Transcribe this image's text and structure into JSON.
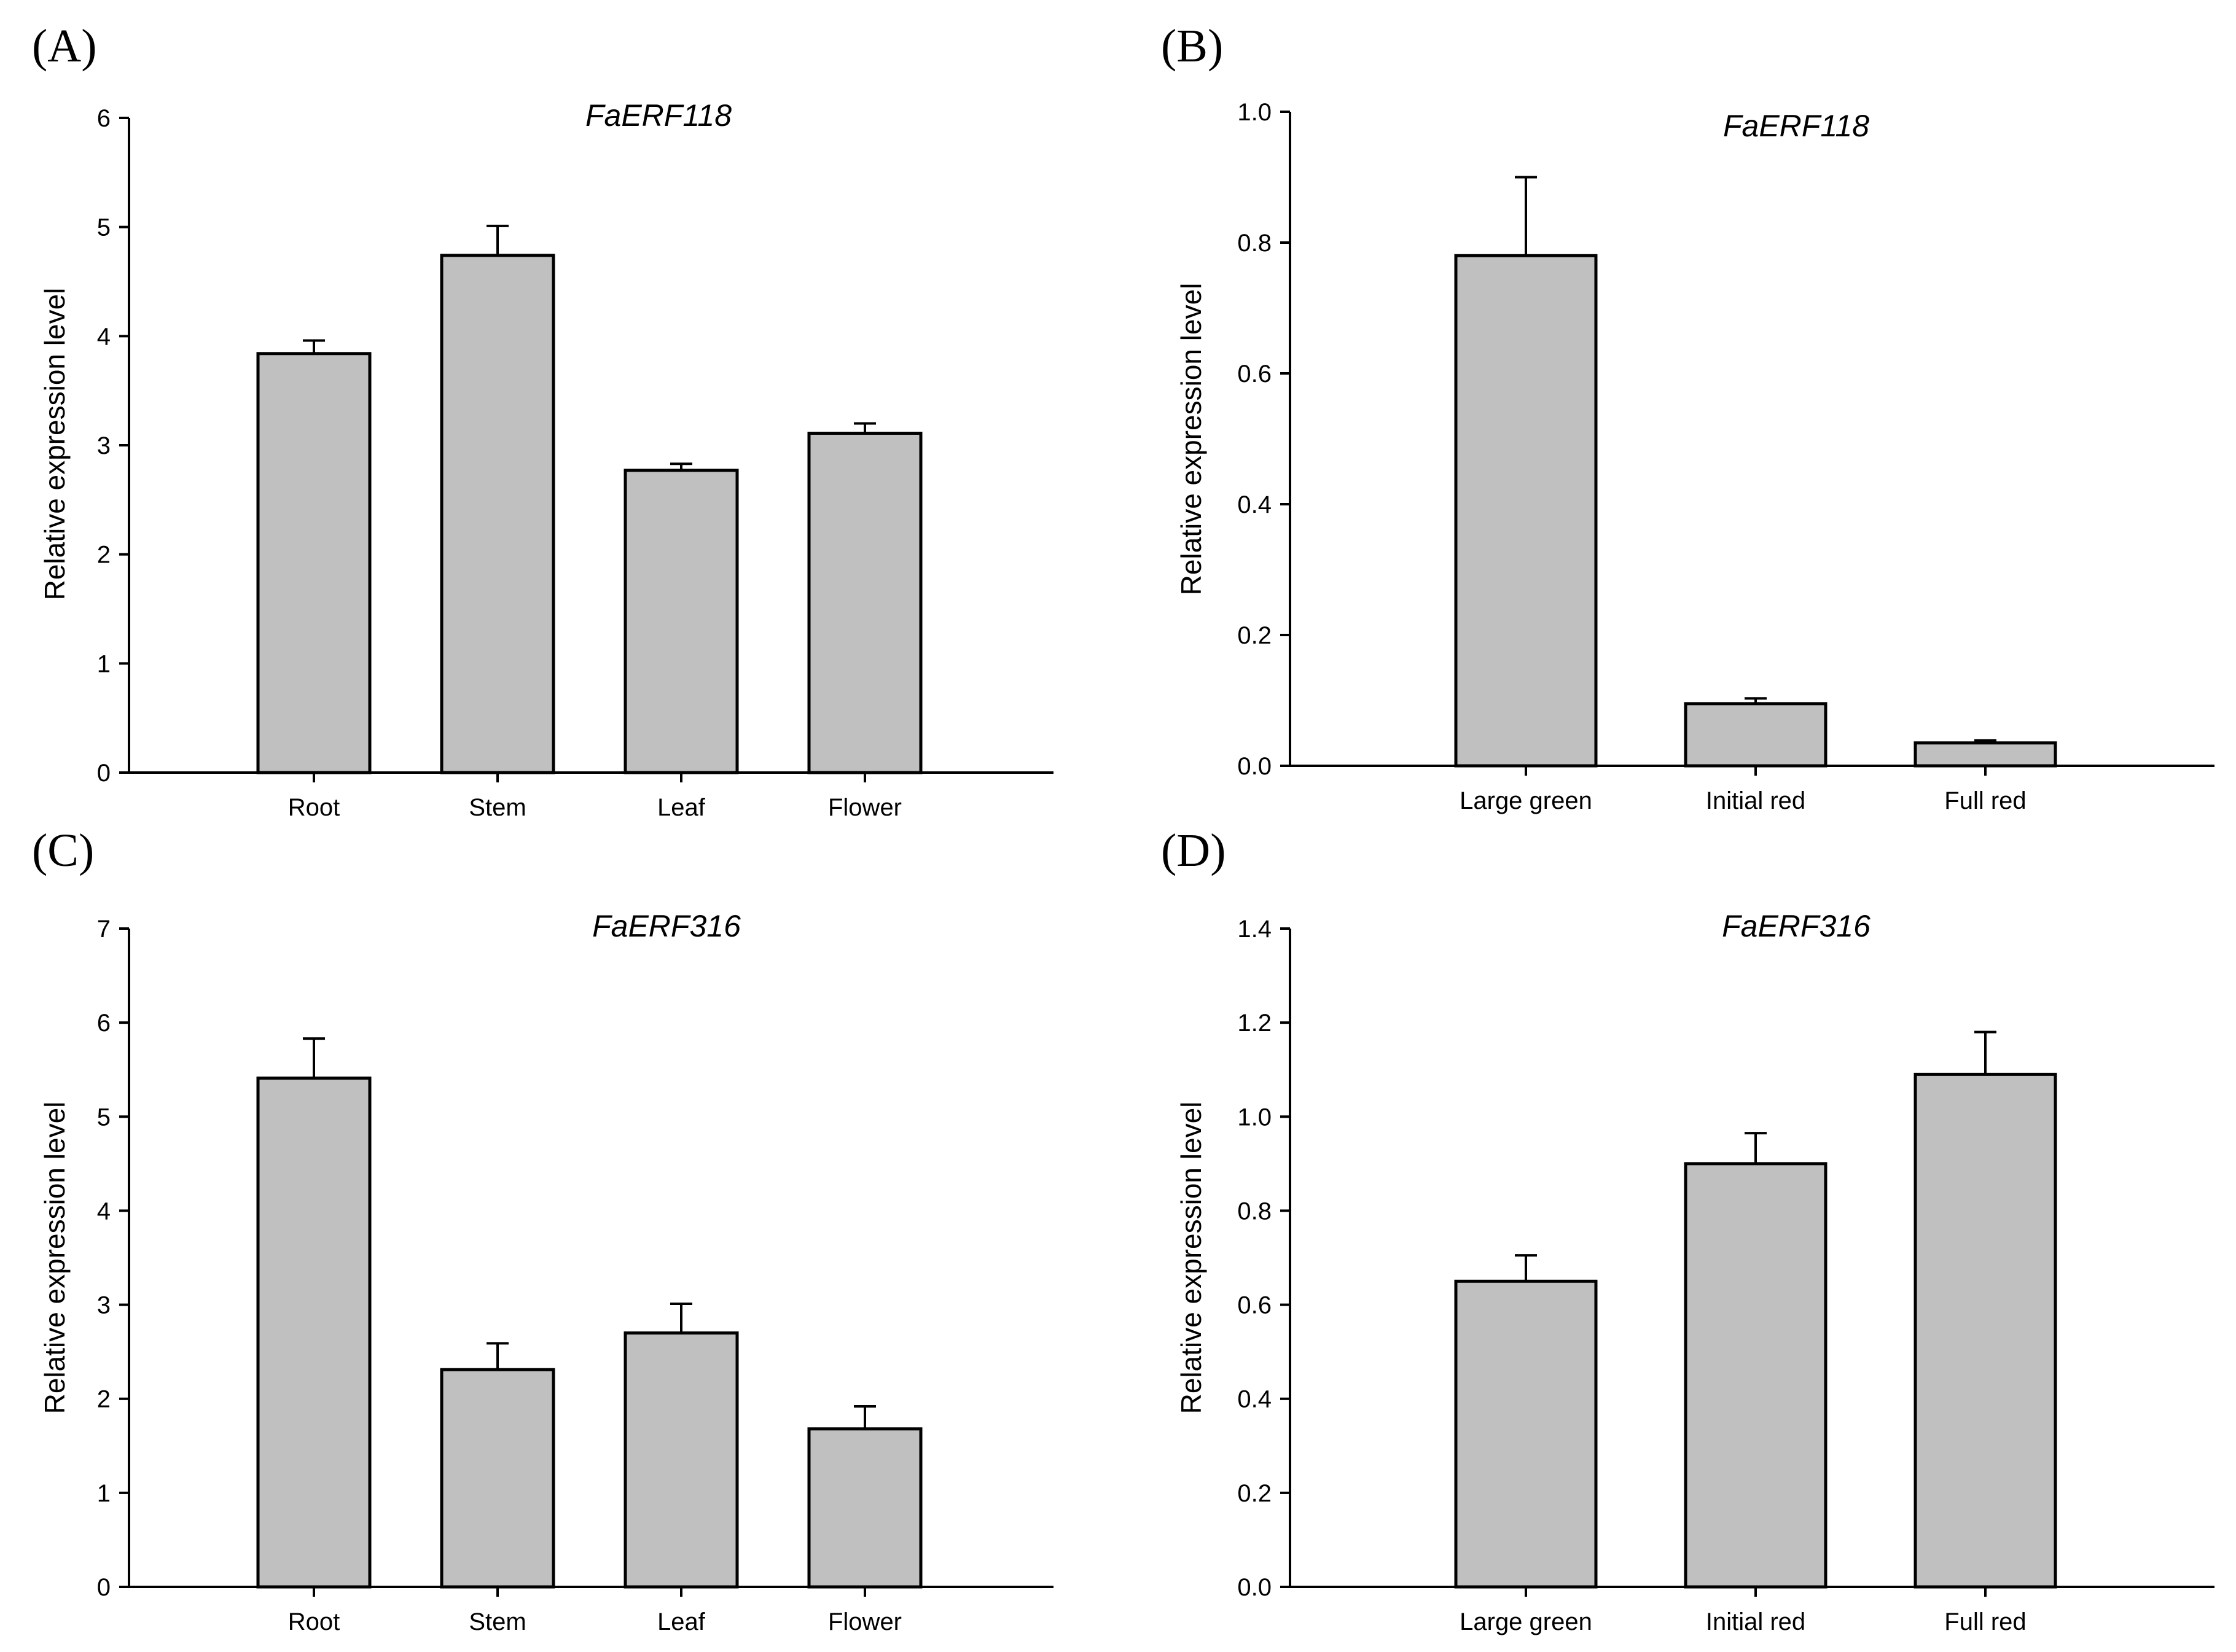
{
  "chart_data": [
    {
      "panel": "(A)",
      "type": "bar",
      "title": "FaERF118",
      "ylabel": "Relative expression level",
      "xlabel": "",
      "ylim": [
        0,
        6
      ],
      "yticks": [
        0,
        1,
        2,
        3,
        4,
        5,
        6
      ],
      "ytick_labels": [
        "0",
        "1",
        "2",
        "3",
        "4",
        "5",
        "6"
      ],
      "categories": [
        "Root",
        "Stem",
        "Leaf",
        "Flower"
      ],
      "values": [
        3.84,
        4.74,
        2.77,
        3.11
      ],
      "errors": [
        0.12,
        0.27,
        0.06,
        0.09
      ],
      "grid": false
    },
    {
      "panel": "(B)",
      "type": "bar",
      "title": "FaERF118",
      "ylabel": "Relative expression level",
      "xlabel": "",
      "ylim": [
        0,
        1.0
      ],
      "yticks": [
        0,
        0.2,
        0.4,
        0.6,
        0.8,
        1.0
      ],
      "ytick_labels": [
        "0.0",
        "0.2",
        "0.4",
        "0.6",
        "0.8",
        "1.0"
      ],
      "categories": [
        "Large green",
        "Initial red",
        "Full red"
      ],
      "values": [
        0.78,
        0.095,
        0.035
      ],
      "errors": [
        0.12,
        0.008,
        0.004
      ],
      "grid": false
    },
    {
      "panel": "(C)",
      "type": "bar",
      "title": "FaERF316",
      "ylabel": "Relative expression level",
      "xlabel": "",
      "ylim": [
        0,
        7
      ],
      "yticks": [
        0,
        1,
        2,
        3,
        4,
        5,
        6,
        7
      ],
      "ytick_labels": [
        "0",
        "1",
        "2",
        "3",
        "4",
        "5",
        "6",
        "7"
      ],
      "categories": [
        "Root",
        "Stem",
        "Leaf",
        "Flower"
      ],
      "values": [
        5.41,
        2.31,
        2.7,
        1.68
      ],
      "errors": [
        0.42,
        0.28,
        0.31,
        0.24
      ],
      "grid": false
    },
    {
      "panel": "(D)",
      "type": "bar",
      "title": "FaERF316",
      "ylabel": "Relative expression level",
      "xlabel": "",
      "ylim": [
        0,
        1.4
      ],
      "yticks": [
        0,
        0.2,
        0.4,
        0.6,
        0.8,
        1.0,
        1.2,
        1.4
      ],
      "ytick_labels": [
        "0.0",
        "0.2",
        "0.4",
        "0.6",
        "0.8",
        "1.0",
        "1.2",
        "1.4"
      ],
      "categories": [
        "Large green",
        "Initial red",
        "Full red"
      ],
      "values": [
        0.65,
        0.9,
        1.09
      ],
      "errors": [
        0.055,
        0.065,
        0.09
      ],
      "grid": false
    }
  ]
}
